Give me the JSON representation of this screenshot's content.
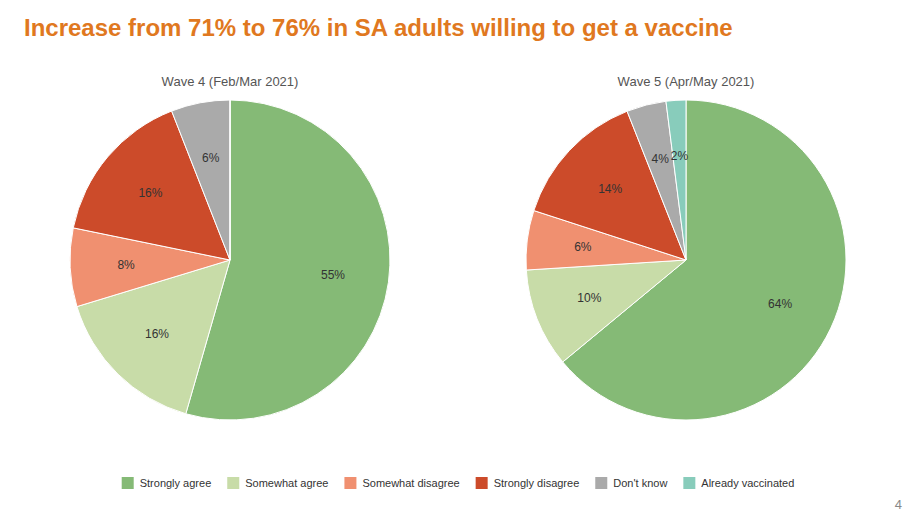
{
  "chart_data": [
    {
      "type": "pie",
      "title": "Increase from 71% to 76% in SA adults willing to get a vaccine",
      "subtitle": "Wave 4 (Feb/Mar 2021)",
      "categories": [
        "Strongly agree",
        "Somewhat agree",
        "Somewhat disagree",
        "Strongly disagree",
        "Don't know",
        "Already vaccinated"
      ],
      "values": [
        55,
        16,
        8,
        16,
        6,
        0
      ],
      "value_labels": [
        "55%",
        "16%",
        "8%",
        "16%",
        "6%",
        null
      ],
      "colors": [
        "#85BA76",
        "#C8DCA8",
        "#F09070",
        "#CC4B2A",
        "#AAAAAA",
        "#88CCBB"
      ],
      "data_labels": true,
      "legend": "bottom"
    },
    {
      "type": "pie",
      "subtitle": "Wave 5 (Apr/May 2021)",
      "categories": [
        "Strongly agree",
        "Somewhat agree",
        "Somewhat disagree",
        "Strongly disagree",
        "Don't know",
        "Already vaccinated"
      ],
      "values": [
        64,
        10,
        6,
        14,
        4,
        2
      ],
      "value_labels": [
        "64%",
        "10%",
        "6%",
        "14%",
        "4%",
        "2%"
      ],
      "colors": [
        "#85BA76",
        "#C8DCA8",
        "#F09070",
        "#CC4B2A",
        "#AAAAAA",
        "#88CCBB"
      ],
      "data_labels": true,
      "annotations": [
        "4"
      ]
    }
  ]
}
